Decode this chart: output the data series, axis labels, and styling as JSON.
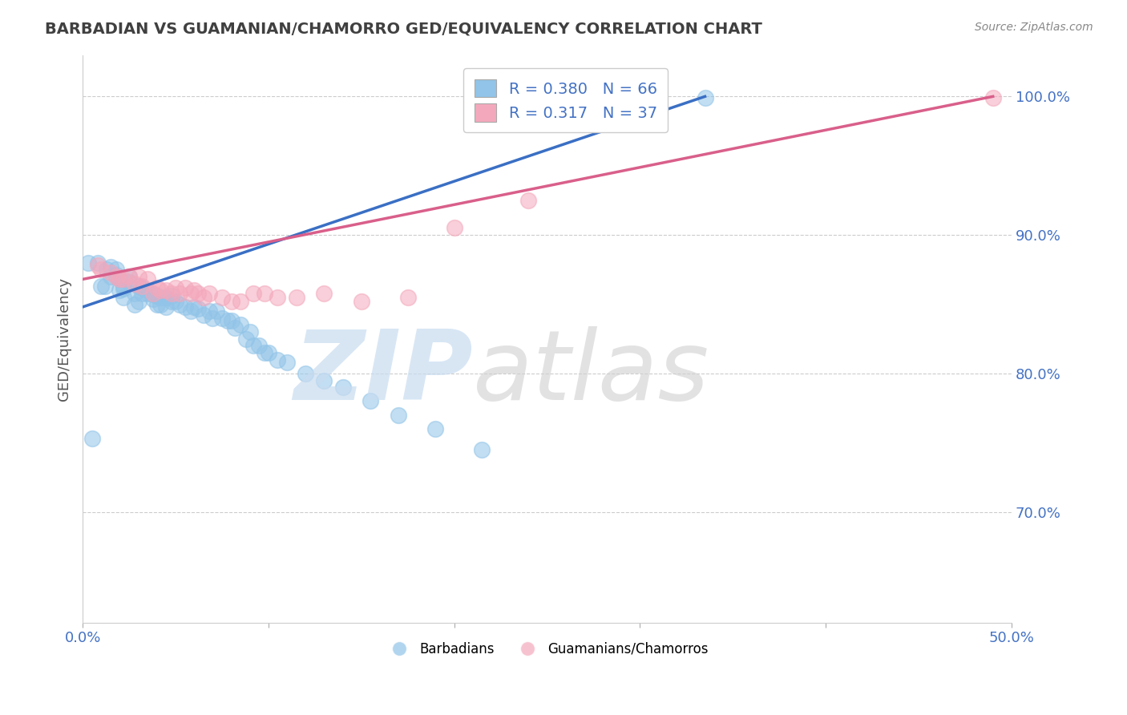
{
  "title": "BARBADIAN VS GUAMANIAN/CHAMORRO GED/EQUIVALENCY CORRELATION CHART",
  "source": "Source: ZipAtlas.com",
  "ylabel": "GED/Equivalency",
  "ytick_labels": [
    "70.0%",
    "80.0%",
    "90.0%",
    "100.0%"
  ],
  "ytick_values": [
    0.7,
    0.8,
    0.9,
    1.0
  ],
  "xlim": [
    0.0,
    0.5
  ],
  "ylim": [
    0.62,
    1.03
  ],
  "legend_R1": "R = 0.380",
  "legend_N1": "N = 66",
  "legend_R2": "R = 0.317",
  "legend_N2": "N = 37",
  "color_blue": "#91c4e8",
  "color_pink": "#f4a8bc",
  "line_color_blue": "#3a6fc4",
  "line_color_pink": "#d95f8a",
  "blue_scatter_x": [
    0.003,
    0.005,
    0.008,
    0.01,
    0.012,
    0.013,
    0.015,
    0.015,
    0.018,
    0.018,
    0.02,
    0.02,
    0.022,
    0.022,
    0.022,
    0.025,
    0.025,
    0.028,
    0.028,
    0.03,
    0.03,
    0.032,
    0.032,
    0.035,
    0.035,
    0.038,
    0.038,
    0.04,
    0.04,
    0.042,
    0.042,
    0.045,
    0.045,
    0.048,
    0.048,
    0.05,
    0.052,
    0.055,
    0.058,
    0.06,
    0.062,
    0.065,
    0.068,
    0.07,
    0.072,
    0.075,
    0.078,
    0.08,
    0.082,
    0.085,
    0.088,
    0.09,
    0.092,
    0.095,
    0.098,
    0.1,
    0.105,
    0.11,
    0.12,
    0.13,
    0.14,
    0.155,
    0.17,
    0.19,
    0.215,
    0.335
  ],
  "blue_scatter_y": [
    0.88,
    0.753,
    0.88,
    0.863,
    0.863,
    0.875,
    0.87,
    0.877,
    0.875,
    0.871,
    0.868,
    0.86,
    0.863,
    0.855,
    0.861,
    0.866,
    0.87,
    0.858,
    0.85,
    0.863,
    0.852,
    0.858,
    0.862,
    0.858,
    0.86,
    0.857,
    0.854,
    0.85,
    0.856,
    0.85,
    0.855,
    0.848,
    0.855,
    0.852,
    0.856,
    0.852,
    0.85,
    0.848,
    0.845,
    0.848,
    0.847,
    0.842,
    0.845,
    0.84,
    0.845,
    0.84,
    0.838,
    0.838,
    0.833,
    0.835,
    0.825,
    0.83,
    0.82,
    0.82,
    0.815,
    0.815,
    0.81,
    0.808,
    0.8,
    0.795,
    0.79,
    0.78,
    0.77,
    0.76,
    0.745,
    0.999
  ],
  "pink_scatter_x": [
    0.008,
    0.01,
    0.015,
    0.018,
    0.02,
    0.022,
    0.025,
    0.028,
    0.03,
    0.032,
    0.035,
    0.038,
    0.04,
    0.042,
    0.045,
    0.048,
    0.05,
    0.052,
    0.055,
    0.058,
    0.06,
    0.062,
    0.065,
    0.068,
    0.075,
    0.08,
    0.085,
    0.092,
    0.098,
    0.105,
    0.115,
    0.13,
    0.15,
    0.175,
    0.2,
    0.24,
    0.49
  ],
  "pink_scatter_y": [
    0.878,
    0.875,
    0.873,
    0.87,
    0.868,
    0.868,
    0.87,
    0.865,
    0.87,
    0.863,
    0.868,
    0.858,
    0.862,
    0.86,
    0.86,
    0.858,
    0.862,
    0.858,
    0.862,
    0.858,
    0.86,
    0.858,
    0.855,
    0.858,
    0.855,
    0.852,
    0.852,
    0.858,
    0.858,
    0.855,
    0.855,
    0.858,
    0.852,
    0.855,
    0.905,
    0.925,
    0.999
  ],
  "blue_line_x": [
    0.0,
    0.335
  ],
  "blue_line_y": [
    0.848,
    1.0
  ],
  "pink_line_x": [
    0.0,
    0.49
  ],
  "pink_line_y": [
    0.868,
    1.0
  ],
  "background_color": "#ffffff",
  "grid_color": "#cccccc",
  "title_color": "#404040",
  "axis_label_color": "#555555",
  "tick_color": "#4472c4",
  "source_color": "#888888",
  "legend_text_color": "#4472c4",
  "legend_N_color": "#222222"
}
